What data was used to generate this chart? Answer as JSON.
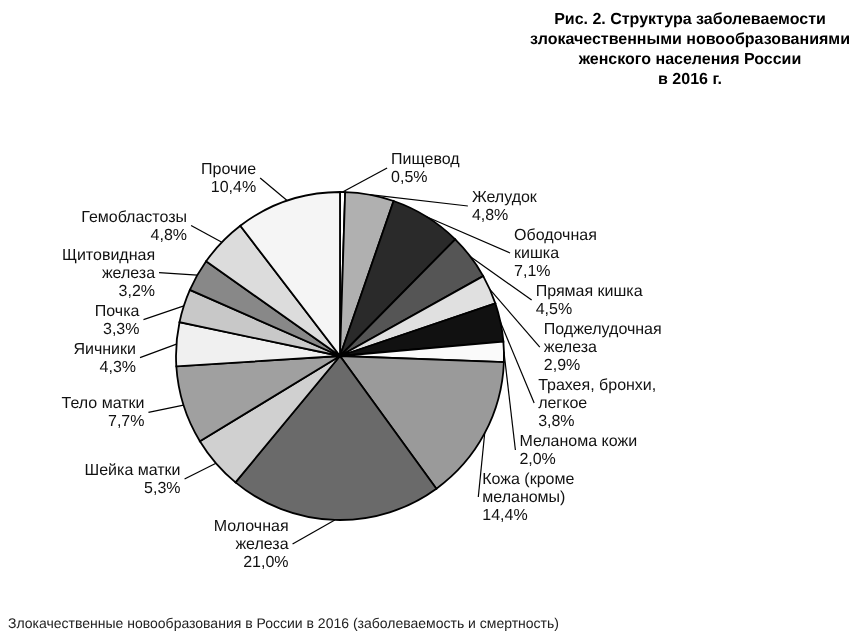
{
  "chart_data": {
    "type": "pie",
    "title": "Рис. 2.  Структура заболеваемости\nзлокачественными новообразованиями\nженского населения России\nв 2016 г.",
    "categories": [
      "Пищевод",
      "Желудок",
      "Ободочная кишка",
      "Прямая кишка",
      "Поджелудочная железа",
      "Трахея, бронхи, легкое",
      "Меланома кожи",
      "Кожа (кроме меланомы)",
      "Молочная железа",
      "Шейка матки",
      "Тело матки",
      "Яичники",
      "Почка",
      "Щитовидная железа",
      "Гемобластозы",
      "Прочие"
    ],
    "values": [
      0.5,
      4.8,
      7.1,
      4.5,
      2.9,
      3.8,
      2.0,
      14.4,
      21.0,
      5.3,
      7.7,
      4.3,
      3.3,
      3.2,
      4.8,
      10.4
    ],
    "value_labels": [
      "0,5%",
      "4,8%",
      "7,1%",
      "4,5%",
      "2,9%",
      "3,8%",
      "2,0%",
      "14,4%",
      "21,0%",
      "5,3%",
      "7,7%",
      "4,3%",
      "3,3%",
      "3,2%",
      "4,8%",
      "10,4%"
    ],
    "colors": [
      "#ffffff",
      "#b0b0b0",
      "#2a2a2a",
      "#555555",
      "#e0e0e0",
      "#111111",
      "#fafafa",
      "#9a9a9a",
      "#6a6a6a",
      "#d0d0d0",
      "#a0a0a0",
      "#f0f0f0",
      "#c8c8c8",
      "#888888",
      "#dcdcdc",
      "#f5f5f5"
    ],
    "annotations": [
      "Злокачественные новообразования в России в 2016  (заболеваемость и смертность)"
    ]
  }
}
